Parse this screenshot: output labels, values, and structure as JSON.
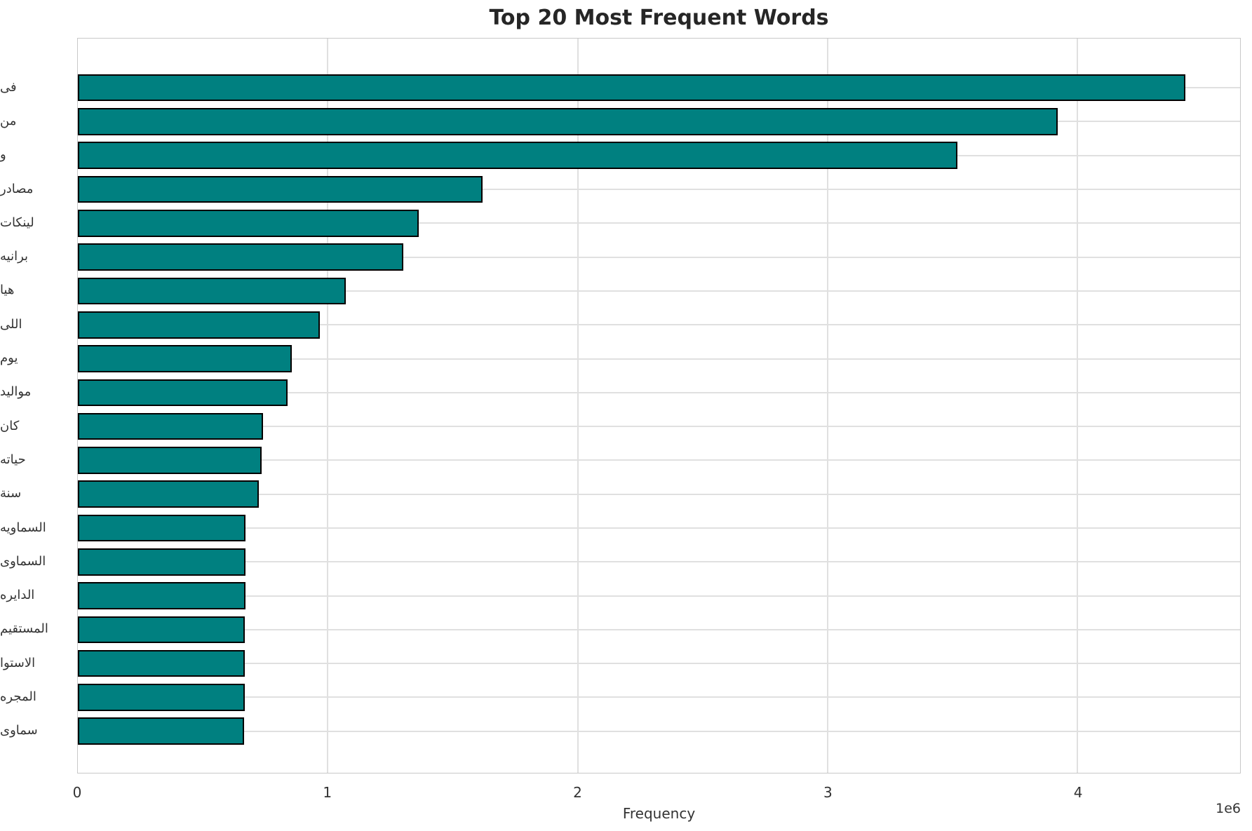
{
  "title": "Top 20 Most Frequent Words",
  "chart_data": {
    "type": "bar",
    "orientation": "horizontal",
    "title": "Top 20 Most Frequent Words",
    "xlabel": "Frequency",
    "ylabel": "",
    "categories": [
      "فى",
      "من",
      "و",
      "مصادر",
      "لينكات",
      "برانيه",
      "هيا",
      "اللى",
      "يوم",
      "مواليد",
      "كان",
      "حياته",
      "سنة",
      "السماويه",
      "السماوى",
      "الدايره",
      "المستقيم",
      "الاستوا",
      "المجره",
      "سماوى"
    ],
    "values": [
      4430000,
      3920000,
      3520000,
      1620000,
      1365000,
      1303000,
      1071000,
      969000,
      855000,
      838000,
      740000,
      735000,
      723000,
      672000,
      671000,
      670000,
      669000,
      668000,
      667000,
      666000
    ],
    "xlim": [
      0,
      4650000
    ],
    "xticks": [
      0,
      1000000,
      2000000,
      3000000,
      4000000
    ],
    "xtick_labels": [
      "0",
      "1",
      "2",
      "3",
      "4"
    ],
    "offset_label": "1e6",
    "grid": true,
    "legend": false,
    "bar_color": "#008080",
    "bar_edge_color": "#000000",
    "grid_color": "#e0e0e0"
  }
}
